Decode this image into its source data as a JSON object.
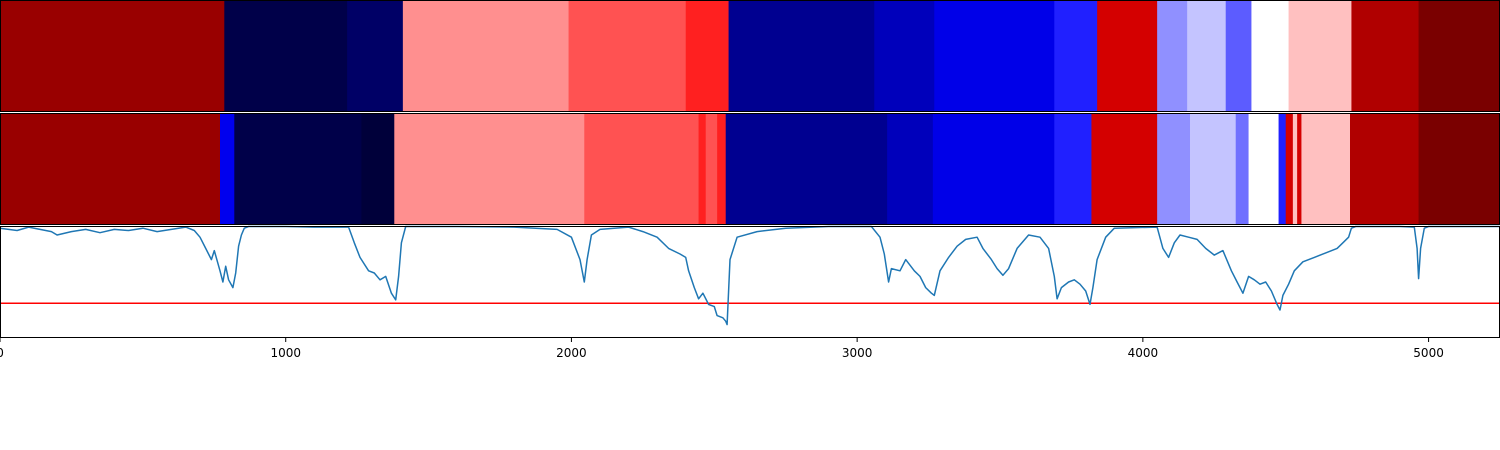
{
  "chart_data": {
    "type": "heatmap",
    "x_range": [
      0,
      5250
    ],
    "x_ticks": [
      0,
      1000,
      2000,
      3000,
      4000,
      5000
    ],
    "x_tick_labels": [
      "0",
      "1000",
      "2000",
      "3000",
      "4000",
      "5000"
    ],
    "heatmap_rows": [
      {
        "segments": [
          {
            "start": 0,
            "end": 785,
            "color": "#990000"
          },
          {
            "start": 785,
            "end": 1215,
            "color": "#000049"
          },
          {
            "start": 1215,
            "end": 1410,
            "color": "#000066"
          },
          {
            "start": 1410,
            "end": 1990,
            "color": "#ff8f8f"
          },
          {
            "start": 1990,
            "end": 2400,
            "color": "#ff5252"
          },
          {
            "start": 2400,
            "end": 2550,
            "color": "#ff2020"
          },
          {
            "start": 2550,
            "end": 3060,
            "color": "#000090"
          },
          {
            "start": 3060,
            "end": 3270,
            "color": "#0000bb"
          },
          {
            "start": 3270,
            "end": 3690,
            "color": "#0000e8"
          },
          {
            "start": 3690,
            "end": 3840,
            "color": "#2020ff"
          },
          {
            "start": 3840,
            "end": 4050,
            "color": "#d40000"
          },
          {
            "start": 4050,
            "end": 4155,
            "color": "#9090ff"
          },
          {
            "start": 4155,
            "end": 4290,
            "color": "#c4c4ff"
          },
          {
            "start": 4290,
            "end": 4380,
            "color": "#5c5cff"
          },
          {
            "start": 4380,
            "end": 4510,
            "color": "#ffffff"
          },
          {
            "start": 4510,
            "end": 4730,
            "color": "#ffc0c0"
          },
          {
            "start": 4730,
            "end": 4965,
            "color": "#b00000"
          },
          {
            "start": 4965,
            "end": 5260,
            "color": "#7a0000"
          }
        ]
      },
      {
        "segments": [
          {
            "start": 0,
            "end": 770,
            "color": "#990000"
          },
          {
            "start": 770,
            "end": 820,
            "color": "#0000ee"
          },
          {
            "start": 820,
            "end": 1265,
            "color": "#000049"
          },
          {
            "start": 1265,
            "end": 1380,
            "color": "#00003a"
          },
          {
            "start": 1380,
            "end": 2045,
            "color": "#ff8f8f"
          },
          {
            "start": 2045,
            "end": 2445,
            "color": "#ff5252"
          },
          {
            "start": 2445,
            "end": 2470,
            "color": "#ff2020"
          },
          {
            "start": 2470,
            "end": 2510,
            "color": "#ff5252"
          },
          {
            "start": 2510,
            "end": 2540,
            "color": "#ff2020"
          },
          {
            "start": 2540,
            "end": 3105,
            "color": "#000090"
          },
          {
            "start": 3105,
            "end": 3265,
            "color": "#0000bb"
          },
          {
            "start": 3265,
            "end": 3690,
            "color": "#0000e8"
          },
          {
            "start": 3690,
            "end": 3820,
            "color": "#2020ff"
          },
          {
            "start": 3820,
            "end": 4050,
            "color": "#d40000"
          },
          {
            "start": 4050,
            "end": 4165,
            "color": "#9090ff"
          },
          {
            "start": 4165,
            "end": 4325,
            "color": "#c4c4ff"
          },
          {
            "start": 4325,
            "end": 4370,
            "color": "#7070ff"
          },
          {
            "start": 4370,
            "end": 4475,
            "color": "#ffffff"
          },
          {
            "start": 4475,
            "end": 4500,
            "color": "#2020ff"
          },
          {
            "start": 4500,
            "end": 4525,
            "color": "#d40000"
          },
          {
            "start": 4525,
            "end": 4540,
            "color": "#ffc0c0"
          },
          {
            "start": 4540,
            "end": 4555,
            "color": "#d40000"
          },
          {
            "start": 4555,
            "end": 4725,
            "color": "#ffc0c0"
          },
          {
            "start": 4725,
            "end": 4965,
            "color": "#b00000"
          },
          {
            "start": 4965,
            "end": 5260,
            "color": "#7a0000"
          }
        ]
      }
    ],
    "line_series": {
      "color": "#1f77b4",
      "y_range": [
        0,
        1
      ],
      "points": [
        [
          0,
          0.98
        ],
        [
          60,
          0.96
        ],
        [
          100,
          0.99
        ],
        [
          180,
          0.95
        ],
        [
          200,
          0.92
        ],
        [
          250,
          0.95
        ],
        [
          300,
          0.97
        ],
        [
          350,
          0.94
        ],
        [
          400,
          0.97
        ],
        [
          450,
          0.96
        ],
        [
          500,
          0.98
        ],
        [
          550,
          0.95
        ],
        [
          600,
          0.97
        ],
        [
          650,
          0.99
        ],
        [
          680,
          0.96
        ],
        [
          700,
          0.9
        ],
        [
          720,
          0.8
        ],
        [
          740,
          0.7
        ],
        [
          750,
          0.78
        ],
        [
          770,
          0.6
        ],
        [
          780,
          0.5
        ],
        [
          790,
          0.64
        ],
        [
          800,
          0.52
        ],
        [
          815,
          0.45
        ],
        [
          825,
          0.58
        ],
        [
          835,
          0.82
        ],
        [
          845,
          0.92
        ],
        [
          855,
          0.98
        ],
        [
          870,
          1.0
        ],
        [
          1000,
          1.0
        ],
        [
          1100,
          0.99
        ],
        [
          1220,
          0.99
        ],
        [
          1240,
          0.85
        ],
        [
          1260,
          0.72
        ],
        [
          1290,
          0.6
        ],
        [
          1310,
          0.58
        ],
        [
          1330,
          0.52
        ],
        [
          1350,
          0.55
        ],
        [
          1370,
          0.4
        ],
        [
          1385,
          0.34
        ],
        [
          1395,
          0.55
        ],
        [
          1405,
          0.85
        ],
        [
          1420,
          1.0
        ],
        [
          1600,
          1.0
        ],
        [
          1800,
          0.99
        ],
        [
          1950,
          0.97
        ],
        [
          2000,
          0.9
        ],
        [
          2030,
          0.7
        ],
        [
          2045,
          0.5
        ],
        [
          2055,
          0.7
        ],
        [
          2070,
          0.92
        ],
        [
          2100,
          0.97
        ],
        [
          2200,
          0.99
        ],
        [
          2250,
          0.95
        ],
        [
          2300,
          0.9
        ],
        [
          2340,
          0.8
        ],
        [
          2380,
          0.75
        ],
        [
          2400,
          0.72
        ],
        [
          2410,
          0.6
        ],
        [
          2430,
          0.45
        ],
        [
          2445,
          0.35
        ],
        [
          2460,
          0.4
        ],
        [
          2480,
          0.3
        ],
        [
          2500,
          0.28
        ],
        [
          2510,
          0.2
        ],
        [
          2530,
          0.18
        ],
        [
          2540,
          0.15
        ],
        [
          2545,
          0.12
        ],
        [
          2555,
          0.7
        ],
        [
          2580,
          0.9
        ],
        [
          2650,
          0.95
        ],
        [
          2750,
          0.98
        ],
        [
          2900,
          1.0
        ],
        [
          3050,
          1.0
        ],
        [
          3080,
          0.9
        ],
        [
          3095,
          0.75
        ],
        [
          3110,
          0.5
        ],
        [
          3120,
          0.62
        ],
        [
          3150,
          0.6
        ],
        [
          3170,
          0.7
        ],
        [
          3200,
          0.6
        ],
        [
          3220,
          0.55
        ],
        [
          3240,
          0.45
        ],
        [
          3260,
          0.4
        ],
        [
          3270,
          0.38
        ],
        [
          3290,
          0.6
        ],
        [
          3320,
          0.72
        ],
        [
          3350,
          0.82
        ],
        [
          3380,
          0.88
        ],
        [
          3420,
          0.9
        ],
        [
          3440,
          0.8
        ],
        [
          3470,
          0.7
        ],
        [
          3490,
          0.62
        ],
        [
          3510,
          0.56
        ],
        [
          3530,
          0.62
        ],
        [
          3560,
          0.8
        ],
        [
          3600,
          0.92
        ],
        [
          3640,
          0.9
        ],
        [
          3670,
          0.8
        ],
        [
          3690,
          0.55
        ],
        [
          3700,
          0.35
        ],
        [
          3715,
          0.45
        ],
        [
          3740,
          0.5
        ],
        [
          3760,
          0.52
        ],
        [
          3780,
          0.48
        ],
        [
          3800,
          0.42
        ],
        [
          3815,
          0.3
        ],
        [
          3825,
          0.45
        ],
        [
          3840,
          0.7
        ],
        [
          3870,
          0.9
        ],
        [
          3900,
          0.98
        ],
        [
          4050,
          0.99
        ],
        [
          4070,
          0.8
        ],
        [
          4090,
          0.72
        ],
        [
          4110,
          0.85
        ],
        [
          4130,
          0.92
        ],
        [
          4160,
          0.9
        ],
        [
          4190,
          0.88
        ],
        [
          4220,
          0.8
        ],
        [
          4250,
          0.74
        ],
        [
          4280,
          0.78
        ],
        [
          4310,
          0.6
        ],
        [
          4330,
          0.5
        ],
        [
          4350,
          0.4
        ],
        [
          4370,
          0.55
        ],
        [
          4390,
          0.52
        ],
        [
          4410,
          0.48
        ],
        [
          4430,
          0.5
        ],
        [
          4450,
          0.42
        ],
        [
          4470,
          0.3
        ],
        [
          4480,
          0.25
        ],
        [
          4490,
          0.38
        ],
        [
          4510,
          0.48
        ],
        [
          4530,
          0.6
        ],
        [
          4560,
          0.68
        ],
        [
          4600,
          0.72
        ],
        [
          4640,
          0.76
        ],
        [
          4680,
          0.8
        ],
        [
          4700,
          0.85
        ],
        [
          4720,
          0.9
        ],
        [
          4730,
          0.98
        ],
        [
          4745,
          1.0
        ],
        [
          4900,
          1.0
        ],
        [
          4950,
          0.99
        ],
        [
          4960,
          0.8
        ],
        [
          4965,
          0.53
        ],
        [
          4972,
          0.8
        ],
        [
          4985,
          0.98
        ],
        [
          5000,
          1.0
        ],
        [
          5260,
          1.0
        ]
      ],
      "threshold": {
        "value": 0.31,
        "color": "#ff0000"
      }
    }
  }
}
